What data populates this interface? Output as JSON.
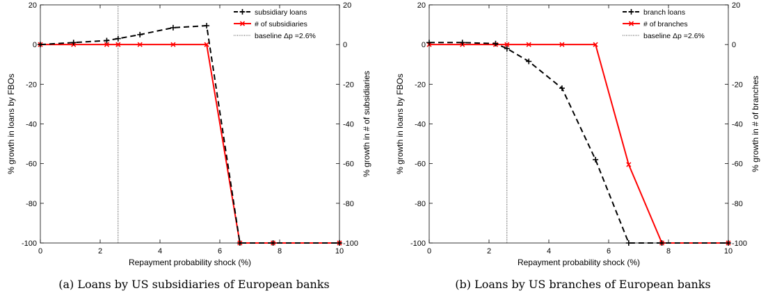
{
  "chart_data": [
    {
      "type": "line",
      "caption": "(a) Loans by US subsidiaries of European banks",
      "xlabel": "Repayment probability shock (%)",
      "ylabel_left": "% growth in loans by FBOs",
      "ylabel_right": "% growth in # of subsidiaries",
      "xlim": [
        0,
        10
      ],
      "ylim": [
        -100,
        20
      ],
      "xticks": [
        "0",
        "2",
        "4",
        "6",
        "8",
        "10"
      ],
      "yticks": [
        "20",
        "0",
        "-20",
        "-40",
        "-60",
        "-80",
        "-100"
      ],
      "grid": false,
      "legend_position": "top-right",
      "baseline_x": 2.6,
      "series": [
        {
          "name": "subsidiary loans",
          "color": "#000000",
          "style": "dashed",
          "marker": "plus",
          "x": [
            0,
            1.11,
            2.22,
            2.6,
            3.33,
            4.44,
            5.56,
            6.67,
            7.78,
            10
          ],
          "y": [
            0,
            1,
            2,
            3,
            5,
            8.5,
            9.5,
            -100,
            -100,
            -100
          ]
        },
        {
          "name": "# of subsidiaries",
          "color": "#ff0000",
          "style": "solid",
          "marker": "x",
          "x": [
            0,
            1.11,
            2.22,
            2.6,
            3.33,
            4.44,
            5.56,
            6.67,
            7.78,
            10
          ],
          "y": [
            0,
            0,
            0,
            0,
            0,
            0,
            0,
            -100,
            -100,
            -100
          ]
        },
        {
          "name": "baseline Δp =2.6%",
          "color": "#000000",
          "style": "dotted",
          "marker": "none",
          "x": [
            2.6,
            2.6
          ],
          "y": [
            -100,
            20
          ]
        }
      ]
    },
    {
      "type": "line",
      "caption": "(b) Loans by US branches of European banks",
      "xlabel": "Repayment probability shock (%)",
      "ylabel_left": "% growth in loans by FBOs",
      "ylabel_right": "% growth in # of branches",
      "xlim": [
        0,
        10
      ],
      "ylim": [
        -100,
        20
      ],
      "xticks": [
        "0",
        "2",
        "4",
        "6",
        "8",
        "10"
      ],
      "yticks": [
        "20",
        "0",
        "-20",
        "-40",
        "-60",
        "-80",
        "-100"
      ],
      "grid": false,
      "legend_position": "top-right",
      "baseline_x": 2.6,
      "series": [
        {
          "name": "branch loans",
          "color": "#000000",
          "style": "dashed",
          "marker": "plus",
          "x": [
            0,
            1.11,
            2.22,
            2.6,
            3.33,
            4.44,
            5.56,
            6.67,
            7.78,
            10
          ],
          "y": [
            1,
            1,
            0.5,
            -2,
            -8.5,
            -22,
            -58,
            -100,
            -100,
            -100
          ]
        },
        {
          "name": "# of branches",
          "color": "#ff0000",
          "style": "solid",
          "marker": "x",
          "x": [
            0,
            1.11,
            2.22,
            2.6,
            3.33,
            4.44,
            5.56,
            6.67,
            7.78,
            10
          ],
          "y": [
            0,
            0,
            0,
            0,
            0,
            0,
            0,
            -60.5,
            -100,
            -100
          ]
        },
        {
          "name": "baseline Δp =2.6%",
          "color": "#000000",
          "style": "dotted",
          "marker": "none",
          "x": [
            2.6,
            2.6
          ],
          "y": [
            -100,
            20
          ]
        }
      ]
    }
  ]
}
